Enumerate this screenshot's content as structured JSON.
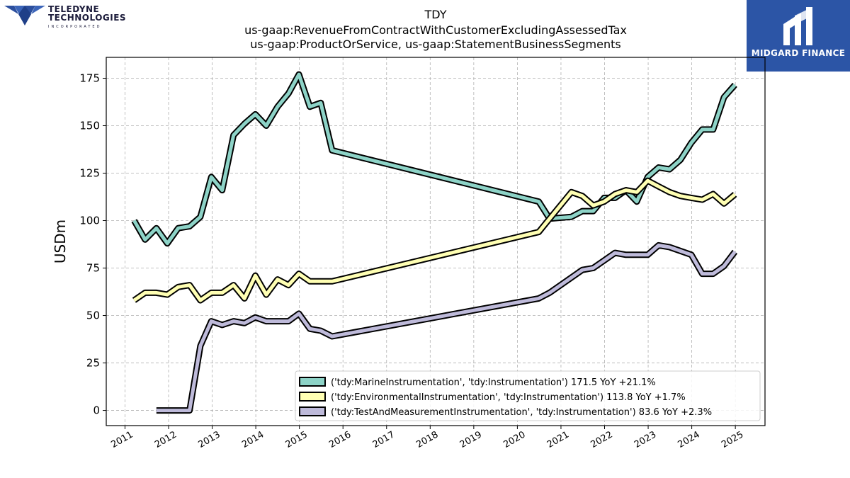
{
  "header": {
    "title_lines": [
      "TDY",
      "us-gaap:RevenueFromContractWithCustomerExcludingAssessedTax",
      "us-gaap:ProductOrService, us-gaap:StatementBusinessSegments"
    ]
  },
  "logos": {
    "teledyne": {
      "line1": "TELEDYNE",
      "line2": "TECHNOLOGIES",
      "line3": "INCORPORATED"
    },
    "midgard": {
      "text": "MIDGARD FINANCE",
      "bg_color": "#2c55a6"
    }
  },
  "chart_data": {
    "type": "line",
    "ylabel": "USDm",
    "xlabel": "",
    "ylim": [
      -8,
      186
    ],
    "xlim": [
      2010.57,
      2025.68
    ],
    "grid": true,
    "legend_position": "lower-right",
    "y_ticks": [
      0,
      25,
      50,
      75,
      100,
      125,
      150,
      175
    ],
    "x_ticks": [
      "2011",
      "2012",
      "2013",
      "2014",
      "2015",
      "2016",
      "2017",
      "2018",
      "2019",
      "2020",
      "2021",
      "2022",
      "2023",
      "2024",
      "2025"
    ],
    "series": [
      {
        "name": "('tdy:MarineInstrumentation', 'tdy:Instrumentation') 171.5 YoY +21.1%",
        "color": "#8dd3c7",
        "points": [
          [
            2011.21,
            100
          ],
          [
            2011.46,
            90
          ],
          [
            2011.72,
            96
          ],
          [
            2011.97,
            88
          ],
          [
            2012.22,
            96
          ],
          [
            2012.48,
            97
          ],
          [
            2012.73,
            102
          ],
          [
            2012.98,
            123
          ],
          [
            2013.23,
            116
          ],
          [
            2013.49,
            145
          ],
          [
            2013.74,
            151
          ],
          [
            2013.99,
            156
          ],
          [
            2014.24,
            150
          ],
          [
            2014.5,
            160
          ],
          [
            2014.75,
            167
          ],
          [
            2014.99,
            177
          ],
          [
            2015.24,
            160
          ],
          [
            2015.49,
            162
          ],
          [
            2015.75,
            137
          ],
          [
            2020.49,
            110
          ],
          [
            2020.74,
            101
          ],
          [
            2021.24,
            102
          ],
          [
            2021.49,
            105
          ],
          [
            2021.74,
            105
          ],
          [
            2021.99,
            112
          ],
          [
            2022.24,
            112
          ],
          [
            2022.49,
            116
          ],
          [
            2022.74,
            110
          ],
          [
            2022.99,
            123
          ],
          [
            2023.24,
            128
          ],
          [
            2023.49,
            127
          ],
          [
            2023.74,
            132
          ],
          [
            2023.99,
            141
          ],
          [
            2024.24,
            148
          ],
          [
            2024.49,
            148
          ],
          [
            2024.74,
            165
          ],
          [
            2024.99,
            171.5
          ]
        ]
      },
      {
        "name": "('tdy:EnvironmentalInstrumentation', 'tdy:Instrumentation') 113.8 YoY +1.7%",
        "color": "#ffffb3",
        "points": [
          [
            2011.21,
            58
          ],
          [
            2011.46,
            62
          ],
          [
            2011.72,
            62
          ],
          [
            2011.97,
            61
          ],
          [
            2012.22,
            65
          ],
          [
            2012.48,
            66
          ],
          [
            2012.73,
            58
          ],
          [
            2012.98,
            62
          ],
          [
            2013.23,
            62
          ],
          [
            2013.49,
            66
          ],
          [
            2013.74,
            59
          ],
          [
            2013.99,
            71
          ],
          [
            2014.24,
            61
          ],
          [
            2014.5,
            69
          ],
          [
            2014.75,
            66
          ],
          [
            2014.99,
            72
          ],
          [
            2015.24,
            68
          ],
          [
            2015.49,
            68
          ],
          [
            2015.75,
            68
          ],
          [
            2020.49,
            94
          ],
          [
            2020.74,
            101
          ],
          [
            2021.24,
            115
          ],
          [
            2021.49,
            113
          ],
          [
            2021.74,
            108
          ],
          [
            2021.99,
            110
          ],
          [
            2022.24,
            114
          ],
          [
            2022.49,
            116
          ],
          [
            2022.74,
            115
          ],
          [
            2022.99,
            121
          ],
          [
            2023.24,
            118
          ],
          [
            2023.49,
            115
          ],
          [
            2023.74,
            113
          ],
          [
            2023.99,
            112
          ],
          [
            2024.24,
            111
          ],
          [
            2024.49,
            114
          ],
          [
            2024.74,
            109
          ],
          [
            2024.99,
            113.8
          ]
        ]
      },
      {
        "name": "('tdy:TestAndMeasurementInstrumentation', 'tdy:Instrumentation') 83.6 YoY +2.3%",
        "color": "#bebada",
        "points": [
          [
            2011.72,
            0
          ],
          [
            2011.97,
            0
          ],
          [
            2012.22,
            0
          ],
          [
            2012.48,
            0
          ],
          [
            2012.73,
            34
          ],
          [
            2012.98,
            47
          ],
          [
            2013.23,
            45
          ],
          [
            2013.49,
            47
          ],
          [
            2013.74,
            46
          ],
          [
            2013.99,
            49
          ],
          [
            2014.24,
            47
          ],
          [
            2014.5,
            47
          ],
          [
            2014.75,
            47
          ],
          [
            2014.99,
            51
          ],
          [
            2015.24,
            43
          ],
          [
            2015.49,
            42
          ],
          [
            2015.75,
            39
          ],
          [
            2020.49,
            59
          ],
          [
            2020.74,
            62
          ],
          [
            2021.24,
            70
          ],
          [
            2021.49,
            74
          ],
          [
            2021.74,
            75
          ],
          [
            2021.99,
            79
          ],
          [
            2022.24,
            83
          ],
          [
            2022.49,
            82
          ],
          [
            2022.74,
            82
          ],
          [
            2022.99,
            82
          ],
          [
            2023.24,
            87
          ],
          [
            2023.49,
            86
          ],
          [
            2023.74,
            84
          ],
          [
            2023.99,
            82
          ],
          [
            2024.24,
            72
          ],
          [
            2024.49,
            72
          ],
          [
            2024.74,
            76
          ],
          [
            2024.99,
            83.6
          ]
        ]
      }
    ]
  }
}
